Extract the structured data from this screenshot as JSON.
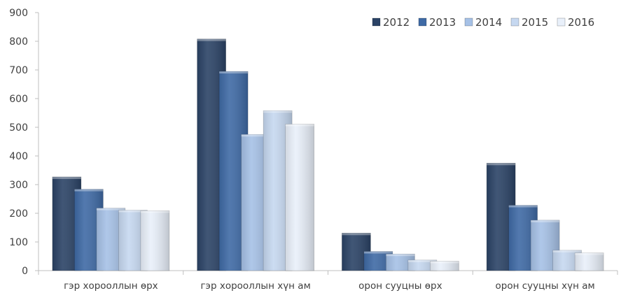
{
  "chart_data": {
    "type": "bar",
    "title": "",
    "xlabel": "",
    "ylabel": "",
    "ylim": [
      0,
      900
    ],
    "yticks": [
      0,
      100,
      200,
      300,
      400,
      500,
      600,
      700,
      800,
      900
    ],
    "grid": false,
    "legend_position": "top-right",
    "categories": [
      "гэр хорооллын өрх",
      "гэр хорооллын хүн ам",
      "орон сууцны өрх",
      "орон сууцны хүн ам"
    ],
    "series": [
      {
        "name": "2012",
        "color": "#2b4366",
        "values": [
          327,
          808,
          131,
          375
        ]
      },
      {
        "name": "2013",
        "color": "#3f6aa5",
        "values": [
          284,
          695,
          67,
          228
        ]
      },
      {
        "name": "2014",
        "color": "#a6c1e6",
        "values": [
          218,
          475,
          58,
          176
        ]
      },
      {
        "name": "2015",
        "color": "#c6d8f0",
        "values": [
          211,
          558,
          37,
          71
        ]
      },
      {
        "name": "2016",
        "color": "#e9f0fa",
        "values": [
          209,
          511,
          33,
          62
        ]
      }
    ]
  }
}
